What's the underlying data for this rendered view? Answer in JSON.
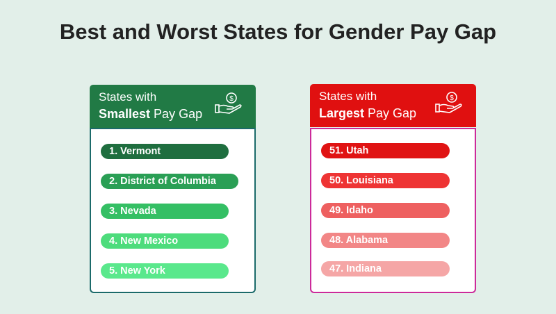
{
  "title": "Best and Worst States for Gender Pay Gap",
  "smallest": {
    "line1": "States with",
    "bold": "Smallest",
    "rest": " Pay Gap",
    "icon": "hand-holding-dollar-icon",
    "color": "#217a45",
    "border_color": "#1b6a6a",
    "items": [
      {
        "label": "1.  Vermont",
        "color": "#1f6e3f"
      },
      {
        "label": "2.  District of Columbia",
        "color": "#2a9f55"
      },
      {
        "label": "3.  Nevada",
        "color": "#34bf64"
      },
      {
        "label": "4.  New Mexico",
        "color": "#4ddc7c"
      },
      {
        "label": "5.  New York",
        "color": "#5ae88c"
      }
    ]
  },
  "largest": {
    "line1": "States with",
    "bold": "Largest",
    "rest": " Pay Gap",
    "icon": "hand-holding-dollar-icon",
    "color": "#e01010",
    "border_color": "#cc2a9a",
    "items": [
      {
        "label": "51.  Utah",
        "color": "#e01313"
      },
      {
        "label": "50.  Louisiana",
        "color": "#ee3434"
      },
      {
        "label": "49.  Idaho",
        "color": "#ee6060"
      },
      {
        "label": "48.  Alabama",
        "color": "#f28686"
      },
      {
        "label": "47.  Indiana",
        "color": "#f5a6a6"
      }
    ]
  }
}
